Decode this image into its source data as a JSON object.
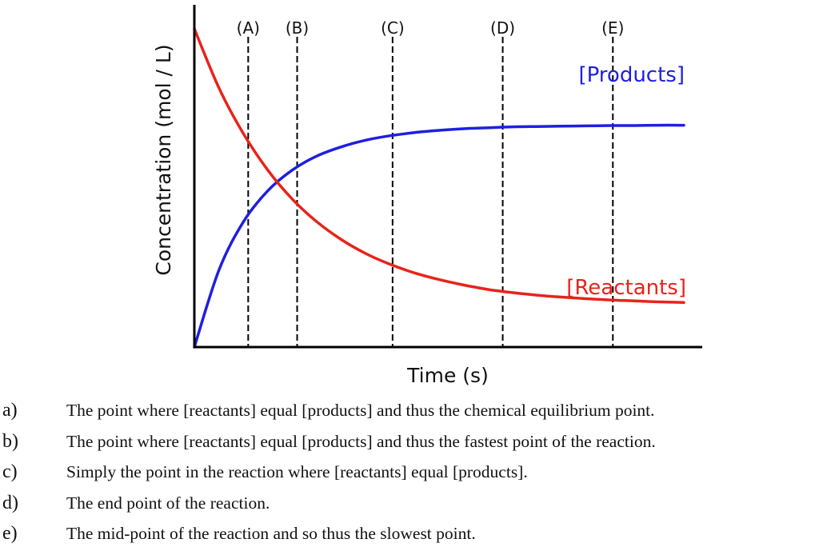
{
  "chart_data": {
    "type": "line",
    "xlabel": "Time (s)",
    "ylabel": "Concentration (mol / L)",
    "xlim": [
      0,
      10
    ],
    "ylim": [
      0,
      10
    ],
    "grid": false,
    "series": [
      {
        "name": "[Products]",
        "color": "#1f1fe0",
        "x": [
          0,
          0.5,
          1,
          1.5,
          2,
          2.5,
          3,
          3.5,
          4,
          4.5,
          5,
          5.5,
          6,
          6.5,
          7,
          7.5,
          8,
          8.5,
          9,
          9.5,
          10
        ],
        "y": [
          0,
          2.41,
          3.93,
          4.91,
          5.56,
          6.0,
          6.29,
          6.5,
          6.64,
          6.74,
          6.81,
          6.86,
          6.89,
          6.92,
          6.93,
          6.94,
          6.95,
          6.96,
          6.96,
          6.97,
          6.97
        ]
      },
      {
        "name": "[Reactants]",
        "color": "#e8231a",
        "x": [
          0,
          0.5,
          1,
          1.5,
          2,
          2.5,
          3,
          3.5,
          4,
          4.5,
          5,
          5.5,
          6,
          6.5,
          7,
          7.5,
          8,
          8.5,
          9,
          9.5,
          10
        ],
        "y": [
          10,
          8.15,
          6.71,
          5.56,
          4.65,
          3.94,
          3.38,
          2.94,
          2.6,
          2.33,
          2.12,
          1.95,
          1.81,
          1.71,
          1.63,
          1.57,
          1.52,
          1.48,
          1.45,
          1.42,
          1.4
        ]
      }
    ],
    "markers": [
      {
        "label": "(A)",
        "x": 1.1
      },
      {
        "label": "(B)",
        "x": 2.1
      },
      {
        "label": "(C)",
        "x": 4.05
      },
      {
        "label": "(D)",
        "x": 6.3
      },
      {
        "label": "(E)",
        "x": 8.55
      }
    ]
  },
  "options": [
    {
      "letter": "a)",
      "text": "The point where [reactants] equal [products] and thus the chemical equilibrium point."
    },
    {
      "letter": "b)",
      "text": "The point where [reactants] equal [products] and thus the fastest point of the reaction."
    },
    {
      "letter": "c)",
      "text": "Simply the point in the reaction where [reactants] equal [products]."
    },
    {
      "letter": "d)",
      "text": "The end point of the reaction."
    },
    {
      "letter": "e)",
      "text": "The mid-point of the reaction and so thus the slowest point."
    }
  ]
}
